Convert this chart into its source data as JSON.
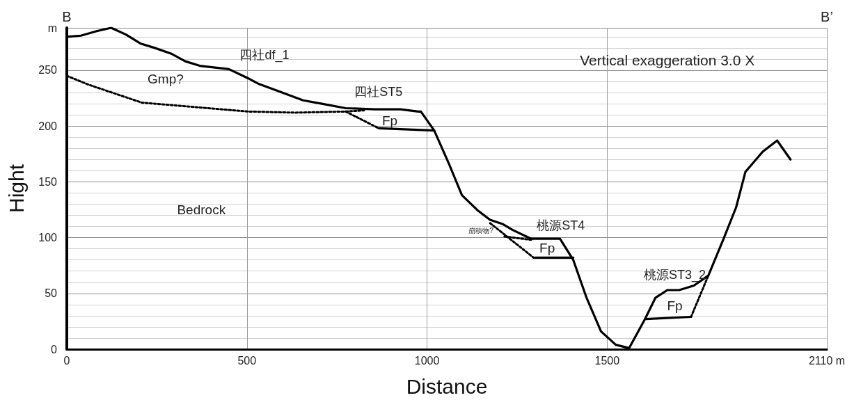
{
  "chart_data": {
    "type": "line",
    "xlabel": "Distance",
    "ylabel": "Hight",
    "xlim": [
      0,
      2110
    ],
    "xticks": [
      0,
      500,
      1000,
      1500,
      {
        "value": 2110,
        "label": "2110 m"
      }
    ],
    "ylim": [
      0,
      288
    ],
    "yticks": [
      0,
      {
        "value": 10,
        "label": null
      },
      {
        "value": 20,
        "label": null
      },
      {
        "value": 30,
        "label": null
      },
      {
        "value": 40,
        "label": null
      },
      50,
      {
        "value": 60,
        "label": null
      },
      {
        "value": 70,
        "label": null
      },
      {
        "value": 80,
        "label": null
      },
      {
        "value": 90,
        "label": null
      },
      100,
      {
        "value": 110,
        "label": null
      },
      {
        "value": 120,
        "label": null
      },
      {
        "value": 130,
        "label": null
      },
      {
        "value": 140,
        "label": null
      },
      150,
      {
        "value": 160,
        "label": null
      },
      {
        "value": 170,
        "label": null
      },
      {
        "value": 180,
        "label": null
      },
      {
        "value": 190,
        "label": null
      },
      200,
      {
        "value": 210,
        "label": null
      },
      {
        "value": 220,
        "label": null
      },
      {
        "value": 230,
        "label": null
      },
      {
        "value": 240,
        "label": null
      },
      250,
      {
        "value": 260,
        "label": null
      },
      {
        "value": 270,
        "label": null
      },
      {
        "value": 280,
        "label": null
      },
      {
        "value": 288,
        "label": "m"
      }
    ],
    "grid": true,
    "marker": "none",
    "series": [
      {
        "color": "#000000",
        "line_style": "solid",
        "x": [
          0,
          39,
          83,
          123,
          164,
          204,
          244,
          289,
          329,
          369,
          450,
          502,
          531,
          590,
          656,
          708,
          774,
          855,
          926,
          976,
          983,
          1020,
          1061,
          1097,
          1142,
          1175,
          1211,
          1237,
          1289,
          1369,
          1406,
          1443,
          1483,
          1524,
          1561,
          1605,
          1634,
          1667,
          1700,
          1741,
          1781,
          1822,
          1858,
          1884,
          1932,
          1972,
          2009
        ],
        "values": [
          280,
          281,
          285,
          288,
          282,
          274,
          270,
          265,
          258,
          254,
          251,
          243,
          238,
          231,
          223,
          220,
          216,
          215,
          215,
          213,
          213,
          196,
          166,
          138,
          124,
          116,
          112,
          107,
          99,
          99,
          80,
          46,
          16,
          4,
          1,
          27,
          46,
          53,
          53,
          57,
          66,
          98,
          127,
          159,
          177,
          187,
          170
        ]
      },
      {
        "color": "#000000",
        "line_style": "dotted",
        "x": [
          0,
          61,
          208,
          502,
          634,
          774,
          825
        ],
        "values": [
          245,
          237,
          221,
          213,
          212,
          213,
          214
        ]
      },
      {
        "color": "#000000",
        "line_style": "dotted",
        "x": [
          774,
          866
        ],
        "values": [
          213,
          198
        ]
      },
      {
        "color": "#000000",
        "line_style": "solid",
        "x": [
          866,
          1020
        ],
        "values": [
          198,
          196
        ]
      },
      {
        "color": "#000000",
        "line_style": "dotted",
        "x": [
          1175,
          1296
        ],
        "values": [
          113,
          82
        ]
      },
      {
        "color": "#000000",
        "line_style": "dotted",
        "x": [
          1215,
          1289
        ],
        "values": [
          101,
          98
        ]
      },
      {
        "color": "#000000",
        "line_style": "solid",
        "x": [
          1300,
          1406
        ],
        "values": [
          82,
          82
        ]
      },
      {
        "color": "#000000",
        "line_style": "solid",
        "x": [
          1608,
          1733
        ],
        "values": [
          27,
          29
        ]
      },
      {
        "color": "#000000",
        "line_style": "dotted",
        "x": [
          1733,
          1781
        ],
        "values": [
          29,
          66
        ]
      }
    ],
    "annotations": [
      "B",
      "B’",
      "Vertical exaggeration 3.0 X",
      "Gmp?",
      "四社df_1",
      "四社ST5",
      "Fp",
      "Bedrock",
      "崩積物?",
      "桃源ST4",
      "Fp",
      "桃源ST3_2",
      "Fp"
    ]
  }
}
